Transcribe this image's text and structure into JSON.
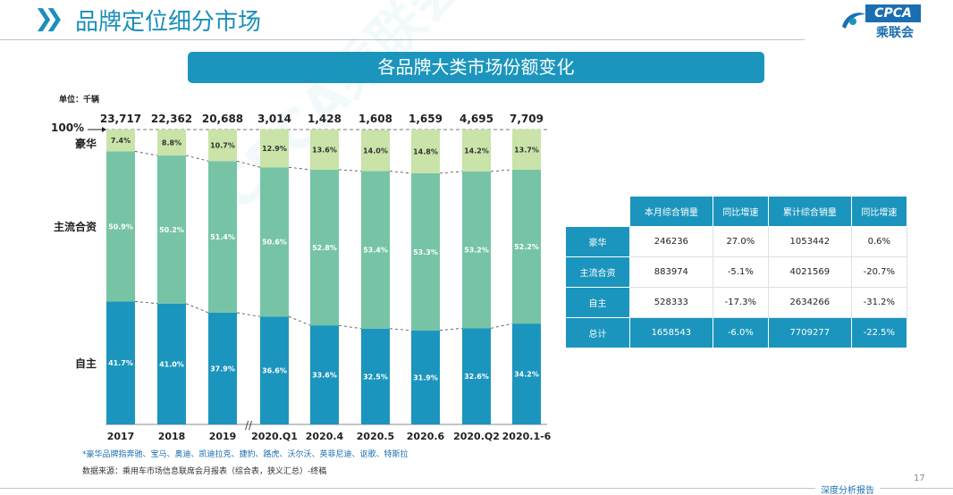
{
  "header": {
    "title": "品牌定位细分市场"
  },
  "logo": {
    "text": "CPCA",
    "sub": "乘联会"
  },
  "banner": {
    "title": "各品牌大类市场份额变化"
  },
  "chart_data": {
    "type": "bar",
    "unit": "单位：千辆",
    "y_top_label": "100%",
    "categories": [
      "2017",
      "2018",
      "2019",
      "2020.Q1",
      "2020.4",
      "2020.5",
      "2020.6",
      "2020.Q2",
      "2020.1-6"
    ],
    "totals": [
      "23,717",
      "22,362",
      "20,688",
      "3,014",
      "1,428",
      "1,608",
      "1,659",
      "4,695",
      "7,709"
    ],
    "series": [
      {
        "name": "自主",
        "values": [
          41.7,
          41.0,
          37.9,
          36.6,
          33.6,
          32.5,
          31.9,
          32.6,
          34.2
        ],
        "labels": [
          "41.7%",
          "41.0%",
          "37.9%",
          "36.6%",
          "33.6%",
          "32.5%",
          "31.9%",
          "32.6%",
          "34.2%"
        ],
        "color": "#1b95bd"
      },
      {
        "name": "主流合资",
        "values": [
          50.9,
          50.2,
          51.4,
          50.6,
          52.8,
          53.4,
          53.3,
          53.2,
          52.2
        ],
        "labels": [
          "50.9%",
          "50.2%",
          "51.4%",
          "50.6%",
          "52.8%",
          "53.4%",
          "53.3%",
          "53.2%",
          "52.2%"
        ],
        "color": "#76c4a5"
      },
      {
        "name": "豪华",
        "values": [
          7.4,
          8.8,
          10.7,
          12.9,
          13.6,
          14.0,
          14.8,
          14.2,
          13.7
        ],
        "labels": [
          "7.4%",
          "8.8%",
          "10.7%",
          "12.9%",
          "13.6%",
          "14.0%",
          "14.8%",
          "14.2%",
          "13.7%"
        ],
        "color": "#c9e3a8"
      }
    ],
    "ylim": [
      0,
      100
    ]
  },
  "notes": {
    "luxury_note": "*豪华品牌指奔驰、宝马、奥迪、凯迪拉克、捷豹、路虎、沃尔沃、英菲尼迪、讴歌、特斯拉",
    "source": "数据来源：乘用车市场信息联席会月报表（综合表，狭义汇总）-终稿"
  },
  "table": {
    "headers": [
      "",
      "本月综合销量",
      "同比增速",
      "累计综合销量",
      "同比增速"
    ],
    "rows": [
      [
        "豪华",
        "246236",
        "27.0%",
        "1053442",
        "0.6%"
      ],
      [
        "主流合资",
        "883974",
        "-5.1%",
        "4021569",
        "-20.7%"
      ],
      [
        "自主",
        "528333",
        "-17.3%",
        "2634266",
        "-31.2%"
      ],
      [
        "总计",
        "1658543",
        "-6.0%",
        "7709277",
        "-22.5%"
      ]
    ]
  },
  "footer": {
    "page": "17",
    "tag": "深度分析报告"
  },
  "colors": {
    "brand": "#1b95bd",
    "title": "#1b8fb8"
  }
}
